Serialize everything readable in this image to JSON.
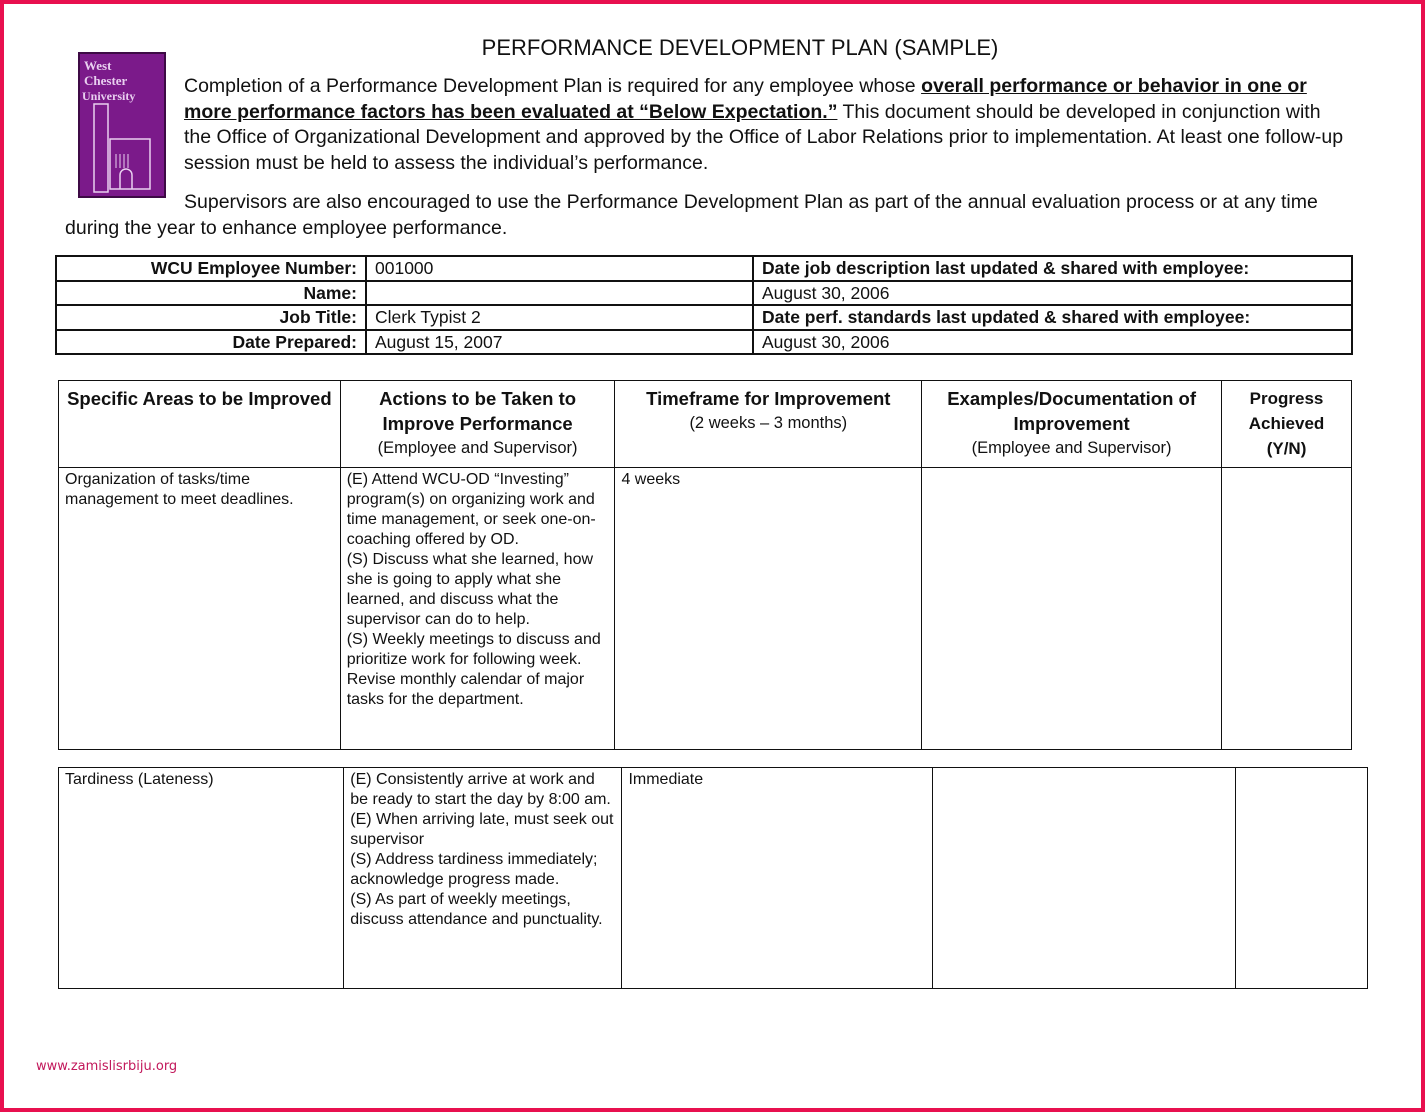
{
  "title": "PERFORMANCE DEVELOPMENT PLAN (SAMPLE)",
  "logo": {
    "text": "West Chester University",
    "color": "#7b1a8a"
  },
  "intro": {
    "part1": "Completion of a Performance Development Plan is required for any employee whose ",
    "bold1": "overall performance or behavior in one or more performance factors has been evaluated at “Below Expectation.”",
    "part2": "  This document should be developed in conjunction with the Office of Organizational Development and approved by the Office of Labor Relations prior to implementation.  At least one follow-up session must be held to assess the individual’s performance."
  },
  "intro2": "Supervisors are also encouraged to use the Performance Development Plan as part of the annual evaluation process or at any time during the year to enhance employee performance.",
  "info": {
    "rows": [
      {
        "label": "WCU Employee Number:",
        "value": "001000",
        "right": "Date job description last updated & shared with employee:",
        "right_bold": true
      },
      {
        "label": "Name:",
        "value": "",
        "right": "August 30, 2006",
        "right_bold": false
      },
      {
        "label": "Job Title:",
        "value": "Clerk Typist 2",
        "right": "Date perf. standards last updated & shared with employee:",
        "right_bold": true
      },
      {
        "label": "Date Prepared:",
        "value": "August 15, 2007",
        "right": "August 30, 2006",
        "right_bold": false
      }
    ]
  },
  "plan": {
    "headers": [
      {
        "title": "Specific Areas to be Improved",
        "sub": ""
      },
      {
        "title": "Actions to be Taken to Improve Performance",
        "sub": "(Employee and Supervisor)"
      },
      {
        "title": "Timeframe for Improvement",
        "sub": "(2 weeks – 3 months)"
      },
      {
        "title": "Examples/Documentation of Improvement",
        "sub": "(Employee and Supervisor)"
      },
      {
        "title": "Progress Achieved (Y/N)",
        "sub": ""
      }
    ],
    "rows": [
      {
        "area": "Organization of tasks/time management to meet deadlines.",
        "actions": "(E)  Attend WCU-OD “Investing” program(s) on organizing work and time management, or seek one-on-coaching offered by OD.\n(S) Discuss what she learned, how she is going to apply what she learned, and discuss what the supervisor can do to help.\n(S) Weekly meetings to discuss and prioritize work for following week. Revise monthly calendar of major tasks for the department.",
        "timeframe": "4 weeks",
        "examples": "",
        "progress": ""
      },
      {
        "area": "Tardiness (Lateness)",
        "actions": "(E) Consistently arrive at work and be ready to start the day by 8:00 am.\n(E) When arriving late, must seek out supervisor\n(S) Address tardiness immediately; acknowledge progress made.\n(S) As part of weekly meetings, discuss attendance and punctuality.",
        "timeframe": "Immediate",
        "examples": "",
        "progress": ""
      }
    ]
  },
  "watermark": "www.zamislisrbiju.org",
  "colors": {
    "border": "#e8104f"
  }
}
